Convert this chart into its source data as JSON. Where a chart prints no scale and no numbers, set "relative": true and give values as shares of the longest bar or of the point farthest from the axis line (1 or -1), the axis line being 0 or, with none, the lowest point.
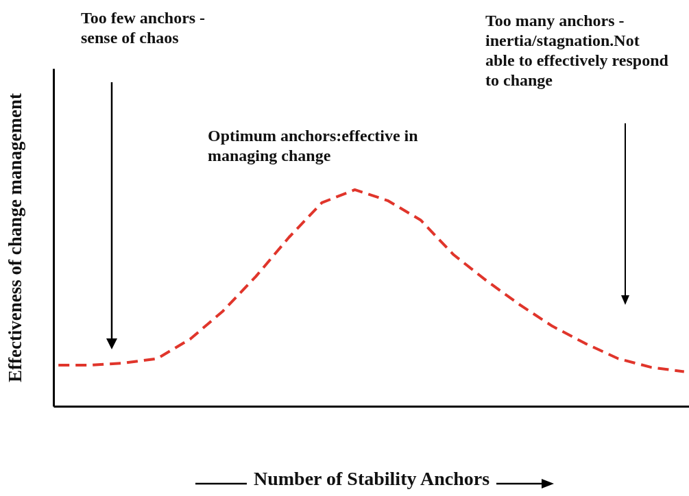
{
  "chart_data": {
    "type": "line",
    "relative": true,
    "xlabel": "Number of Stability Anchors",
    "ylabel": "Effectiveness of change management",
    "line_style": "dashed",
    "color": "#e0352b",
    "categories": [
      null,
      null,
      null,
      null,
      null,
      null,
      null,
      null,
      null,
      null,
      null,
      null,
      null,
      null,
      null,
      null,
      null,
      null,
      null,
      null
    ],
    "values": [
      0.19,
      0.19,
      0.2,
      0.22,
      0.31,
      0.44,
      0.6,
      0.78,
      0.94,
      1.0,
      0.95,
      0.86,
      0.7,
      0.58,
      0.47,
      0.37,
      0.29,
      0.22,
      0.18,
      0.16
    ],
    "annotations": [
      "Too few anchors - sense of chaos",
      "Optimum anchors:effective in managing change",
      "Too many anchors - inertia/stagnation.Not able to effectively respond to change"
    ]
  }
}
